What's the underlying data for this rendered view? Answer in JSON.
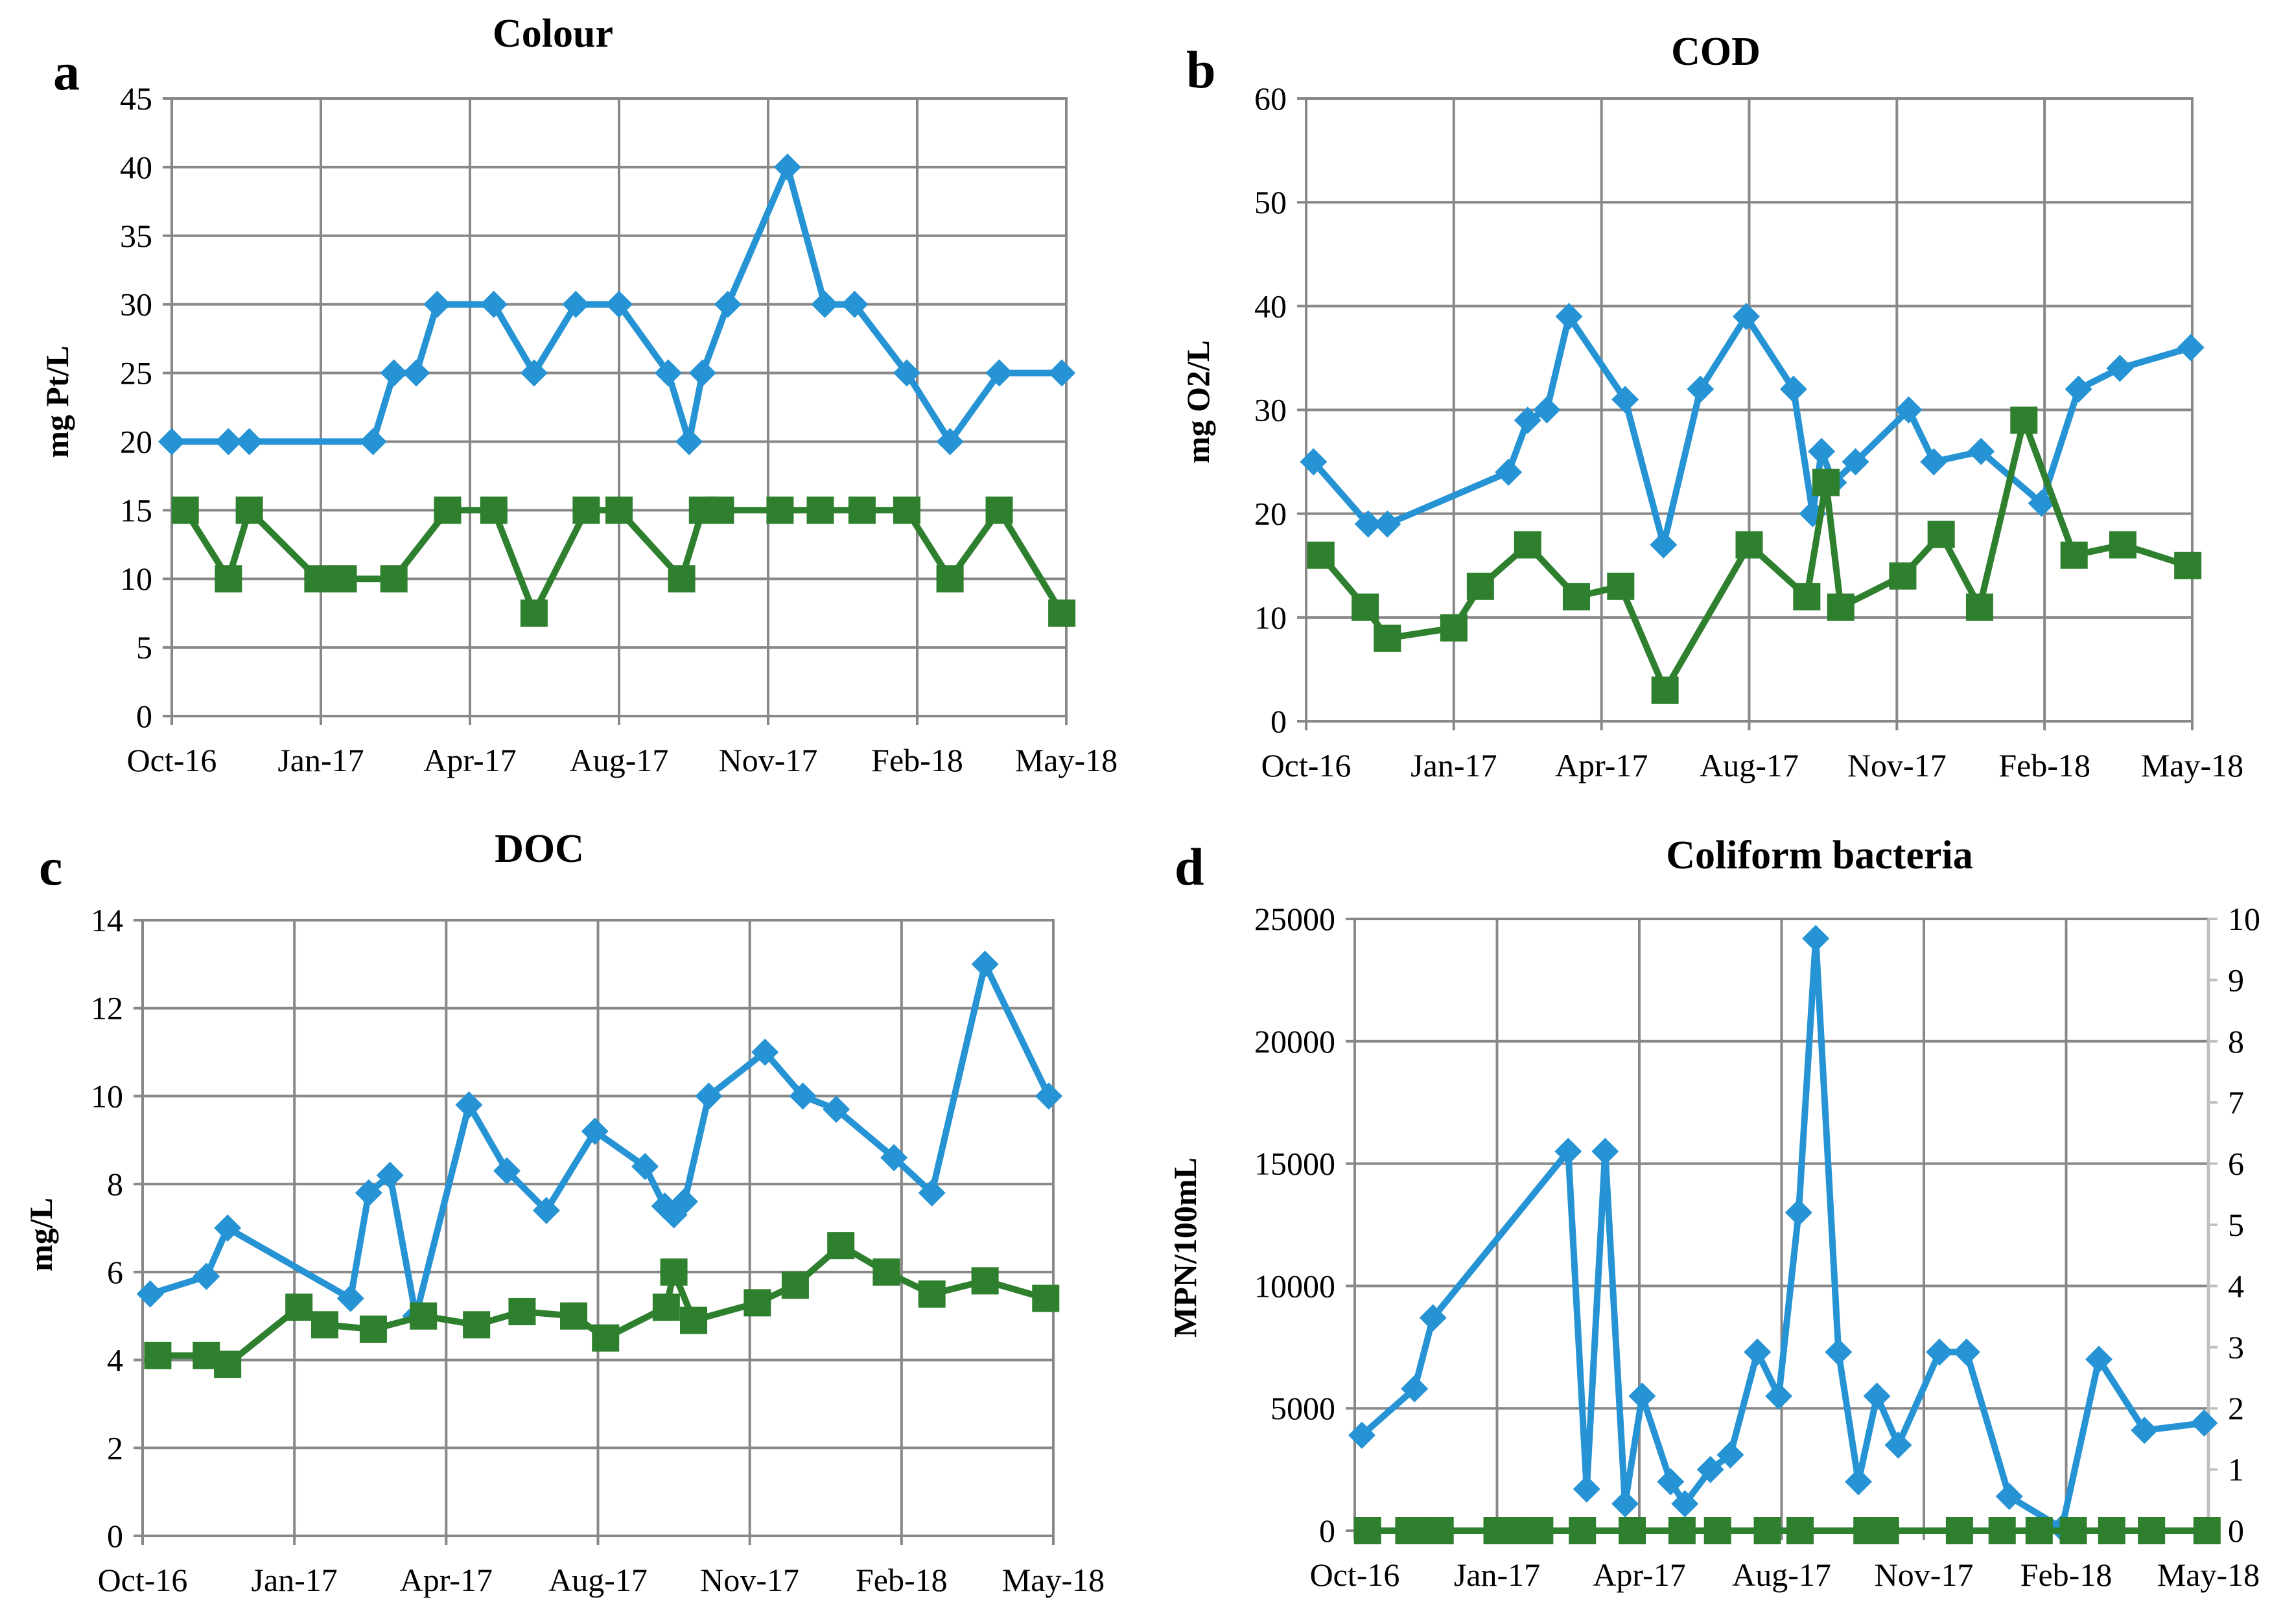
{
  "colors": {
    "blue": "#2593d4",
    "green": "#2e7f2e",
    "grid": "#888888",
    "right_axis": "#bfbfbf"
  },
  "chart_data": [
    {
      "id": "a",
      "panel_letter": "a",
      "type": "line",
      "title": "Colour",
      "xlabel": "",
      "ylabel": "mg Pt/L",
      "x_ticks": [
        "Oct-16",
        "Jan-17",
        "Apr-17",
        "Aug-17",
        "Nov-17",
        "Feb-18",
        "May-18"
      ],
      "ylim": [
        0,
        45
      ],
      "y_ticks": [
        0,
        5,
        10,
        15,
        20,
        25,
        30,
        35,
        40,
        45
      ],
      "grid": true,
      "series": [
        {
          "name": "series 1",
          "color": "blue",
          "marker": "diamond",
          "x": [
            0.0,
            0.38,
            0.52,
            1.35,
            1.49,
            1.64,
            1.78,
            2.16,
            2.43,
            2.71,
            3.0,
            3.33,
            3.47,
            3.56,
            3.73,
            4.13,
            4.38,
            4.58,
            4.93,
            5.22,
            5.55,
            5.97
          ],
          "values": [
            20,
            20,
            20,
            20,
            25,
            25,
            30,
            30,
            25,
            30,
            30,
            25,
            20,
            25,
            30,
            40,
            30,
            30,
            25,
            20,
            25,
            25
          ]
        },
        {
          "name": "series 2",
          "color": "green",
          "marker": "square",
          "x": [
            0.09,
            0.38,
            0.52,
            0.98,
            1.15,
            1.49,
            1.85,
            2.16,
            2.43,
            2.78,
            3.0,
            3.42,
            3.56,
            3.68,
            4.08,
            4.35,
            4.63,
            4.93,
            5.22,
            5.55,
            5.97
          ],
          "values": [
            15,
            10,
            15,
            10,
            10,
            10,
            15,
            15,
            7.5,
            15,
            15,
            10,
            15,
            15,
            15,
            15,
            15,
            15,
            10,
            15,
            7.5
          ]
        }
      ]
    },
    {
      "id": "b",
      "panel_letter": "b",
      "type": "line",
      "title": "COD",
      "xlabel": "",
      "ylabel": "mg O2/L",
      "x_ticks": [
        "Oct-16",
        "Jan-17",
        "Apr-17",
        "Aug-17",
        "Nov-17",
        "Feb-18",
        "May-18"
      ],
      "ylim": [
        0,
        60
      ],
      "y_ticks": [
        0,
        10,
        20,
        30,
        40,
        50,
        60
      ],
      "grid": true,
      "series": [
        {
          "name": "series 1",
          "color": "blue",
          "marker": "diamond",
          "x": [
            0.05,
            0.42,
            0.55,
            1.37,
            1.5,
            1.63,
            1.78,
            2.16,
            2.42,
            2.67,
            2.98,
            3.3,
            3.43,
            3.49,
            3.57,
            3.72,
            4.08,
            4.25,
            4.57,
            4.98,
            5.23,
            5.51,
            5.99
          ],
          "values": [
            25,
            19,
            19,
            24,
            29,
            30,
            39,
            31,
            17,
            32,
            39,
            32,
            20,
            26,
            23,
            25,
            30,
            25,
            26,
            21,
            32,
            34,
            36
          ]
        },
        {
          "name": "series 2",
          "color": "green",
          "marker": "square",
          "x": [
            0.1,
            0.4,
            0.55,
            1.0,
            1.18,
            1.5,
            1.83,
            2.13,
            2.43,
            3.0,
            3.39,
            3.52,
            3.62,
            4.04,
            4.3,
            4.56,
            4.86,
            5.2,
            5.53,
            5.97
          ],
          "values": [
            16,
            11,
            8,
            9,
            13,
            17,
            12,
            13,
            3,
            17,
            12,
            23,
            11,
            14,
            18,
            11,
            29,
            16,
            17,
            15
          ]
        }
      ]
    },
    {
      "id": "c",
      "panel_letter": "c",
      "type": "line",
      "title": "DOC",
      "xlabel": "",
      "ylabel": "mg/L",
      "x_ticks": [
        "Oct-16",
        "Jan-17",
        "Apr-17",
        "Aug-17",
        "Nov-17",
        "Feb-18",
        "May-18"
      ],
      "ylim": [
        0,
        14
      ],
      "y_ticks": [
        0,
        2,
        4,
        6,
        8,
        10,
        12,
        14
      ],
      "grid": true,
      "series": [
        {
          "name": "series 1",
          "color": "blue",
          "marker": "diamond",
          "x": [
            0.05,
            0.42,
            0.56,
            1.37,
            1.49,
            1.63,
            1.8,
            2.15,
            2.4,
            2.66,
            2.98,
            3.31,
            3.44,
            3.5,
            3.57,
            3.73,
            4.1,
            4.35,
            4.57,
            4.95,
            5.2,
            5.55,
            5.97
          ],
          "values": [
            5.5,
            5.9,
            7.0,
            5.4,
            7.8,
            8.2,
            5.0,
            9.8,
            8.3,
            7.4,
            9.2,
            8.4,
            7.5,
            7.3,
            7.6,
            10.0,
            11.0,
            10.0,
            9.7,
            8.6,
            7.8,
            13.0,
            10.0
          ]
        },
        {
          "name": "series 2",
          "color": "green",
          "marker": "square",
          "x": [
            0.1,
            0.42,
            0.56,
            1.03,
            1.2,
            1.52,
            1.85,
            2.2,
            2.5,
            2.84,
            3.05,
            3.45,
            3.5,
            3.63,
            4.05,
            4.3,
            4.6,
            4.9,
            5.2,
            5.55,
            5.95
          ],
          "values": [
            4.1,
            4.1,
            3.9,
            5.2,
            4.8,
            4.7,
            5.0,
            4.8,
            5.1,
            5.0,
            4.5,
            5.2,
            6.0,
            4.9,
            5.3,
            5.7,
            6.6,
            6.0,
            5.5,
            5.8,
            5.4
          ]
        }
      ]
    },
    {
      "id": "d",
      "panel_letter": "d",
      "type": "line",
      "title": "Coliform bacteria",
      "xlabel": "",
      "ylabel": "MPN/100mL",
      "x_ticks": [
        "Oct-16",
        "Jan-17",
        "Apr-17",
        "Aug-17",
        "Nov-17",
        "Feb-18",
        "May-18"
      ],
      "ylim": [
        0,
        25000
      ],
      "y_ticks": [
        0,
        5000,
        10000,
        15000,
        20000,
        25000
      ],
      "y2lim": [
        0,
        10
      ],
      "y2_ticks": [
        0,
        1,
        2,
        3,
        4,
        5,
        6,
        7,
        8,
        9,
        10
      ],
      "grid": true,
      "series": [
        {
          "name": "series 1",
          "color": "blue",
          "marker": "diamond",
          "x": [
            0.05,
            0.42,
            0.55,
            1.5,
            1.63,
            1.76,
            1.9,
            2.02,
            2.22,
            2.32,
            2.5,
            2.64,
            2.83,
            2.98,
            3.12,
            3.24,
            3.4,
            3.54,
            3.67,
            3.82,
            4.11,
            4.3,
            4.6,
            4.97,
            5.23,
            5.55,
            5.97
          ],
          "values": [
            3900,
            5800,
            8700,
            15500,
            1700,
            15500,
            1100,
            5500,
            2000,
            1100,
            2500,
            3100,
            7300,
            5500,
            13000,
            24200,
            7300,
            2000,
            5500,
            3500,
            7300,
            7300,
            1400,
            100,
            7000,
            4100,
            4400
          ]
        },
        {
          "name": "series 2",
          "color": "green",
          "marker": "square",
          "axis": "right",
          "x": [
            0.09,
            0.38,
            0.48,
            0.6,
            1.0,
            1.15,
            1.3,
            1.6,
            1.95,
            2.3,
            2.55,
            2.9,
            3.13,
            3.6,
            3.73,
            4.25,
            4.55,
            4.81,
            5.05,
            5.32,
            5.6,
            5.99
          ],
          "values": [
            0,
            0,
            0,
            0,
            0,
            0,
            0,
            0,
            0,
            0,
            0,
            0,
            0,
            0,
            0,
            0,
            0,
            0,
            0,
            0,
            0,
            0
          ]
        }
      ]
    }
  ]
}
